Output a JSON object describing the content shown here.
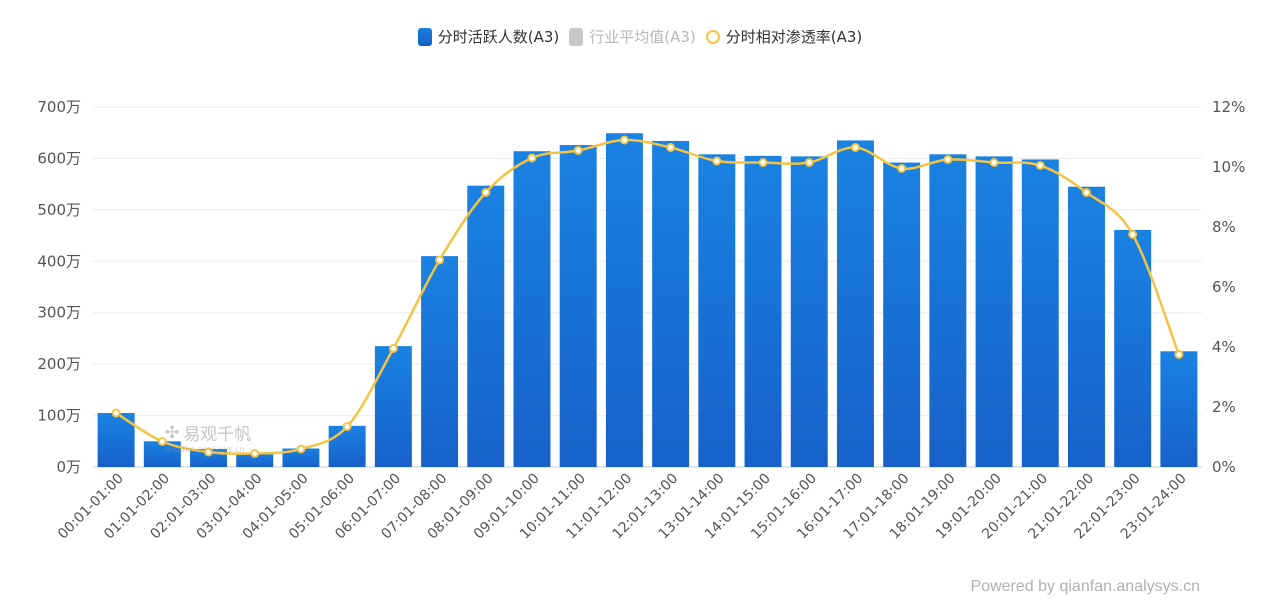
{
  "legend": {
    "bar_label": "分时活跃人数(A3)",
    "avg_label": "行业平均值(A3)",
    "line_label": "分时相对渗透率(A3)"
  },
  "watermark": {
    "text": "易观千帆",
    "sub": "qianfan.analysys.cn"
  },
  "footer": {
    "powered": "Powered by qianfan.analysys.cn"
  },
  "colors": {
    "bar_top": "#1a82e2",
    "bar_bottom": "#1761c9",
    "line": "#f5c342",
    "grid": "#ececec",
    "axis_text": "#555555"
  },
  "chart_data": {
    "type": "bar+line",
    "categories": [
      "00:01-01:00",
      "01:01-02:00",
      "02:01-03:00",
      "03:01-04:00",
      "04:01-05:00",
      "05:01-06:00",
      "06:01-07:00",
      "07:01-08:00",
      "08:01-09:00",
      "09:01-10:00",
      "10:01-11:00",
      "11:01-12:00",
      "12:01-13:00",
      "13:01-14:00",
      "14:01-15:00",
      "15:01-16:00",
      "16:01-17:00",
      "17:01-18:00",
      "18:01-19:00",
      "19:01-20:00",
      "20:01-21:00",
      "21:01-22:00",
      "22:01-23:00",
      "23:01-24:00"
    ],
    "series": [
      {
        "name": "分时活跃人数(A3)",
        "axis": "left",
        "unit": "万",
        "values": [
          105,
          50,
          35,
          28,
          36,
          80,
          235,
          410,
          547,
          614,
          626,
          649,
          634,
          608,
          605,
          604,
          635,
          592,
          608,
          604,
          598,
          545,
          461,
          225
        ]
      },
      {
        "name": "分时相对渗透率(A3)",
        "axis": "right",
        "unit": "%",
        "values": [
          1.8,
          0.85,
          0.5,
          0.45,
          0.6,
          1.35,
          3.95,
          6.9,
          9.15,
          10.3,
          10.55,
          10.9,
          10.65,
          10.2,
          10.15,
          10.15,
          10.65,
          9.95,
          10.25,
          10.15,
          10.05,
          9.15,
          7.75,
          3.75
        ]
      }
    ],
    "left_axis": {
      "ylim": [
        0,
        700
      ],
      "ticks": [
        0,
        100,
        200,
        300,
        400,
        500,
        600,
        700
      ],
      "tick_labels": [
        "0万",
        "100万",
        "200万",
        "300万",
        "400万",
        "500万",
        "600万",
        "700万"
      ]
    },
    "right_axis": {
      "ylim": [
        0,
        12
      ],
      "ticks": [
        0,
        2,
        4,
        6,
        8,
        10,
        12
      ],
      "tick_labels": [
        "0%",
        "2%",
        "4%",
        "6%",
        "8%",
        "10%",
        "12%"
      ]
    },
    "legend_position": "top-center",
    "grid": true
  }
}
